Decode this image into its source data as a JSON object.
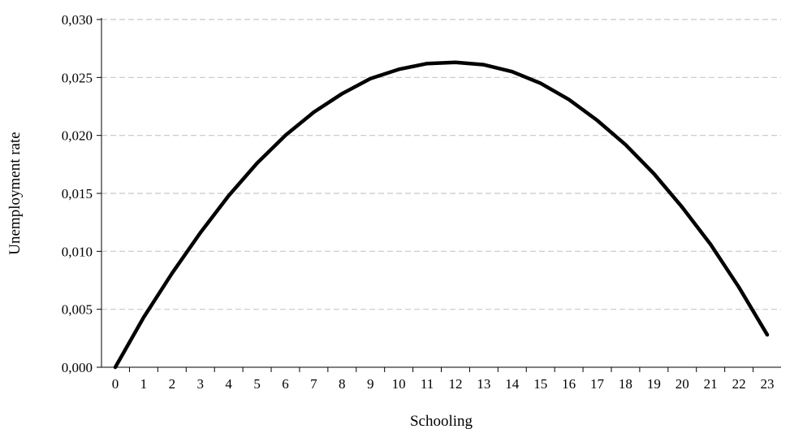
{
  "chart_data": {
    "type": "line",
    "title": "",
    "xlabel": "Schooling",
    "ylabel": "Unemployment rate",
    "xlim": [
      0,
      23
    ],
    "ylim": [
      0,
      0.03
    ],
    "x_ticks": [
      0,
      1,
      2,
      3,
      4,
      5,
      6,
      7,
      8,
      9,
      10,
      11,
      12,
      13,
      14,
      15,
      16,
      17,
      18,
      19,
      20,
      21,
      22,
      23
    ],
    "x_tick_labels": [
      "0",
      "1",
      "2",
      "3",
      "4",
      "5",
      "6",
      "7",
      "8",
      "9",
      "10",
      "11",
      "12",
      "13",
      "14",
      "15",
      "16",
      "17",
      "18",
      "19",
      "20",
      "21",
      "22",
      "23"
    ],
    "y_ticks": [
      0,
      0.005,
      0.01,
      0.015,
      0.02,
      0.025,
      0.03
    ],
    "y_tick_labels": [
      "0,000",
      "0,005",
      "0,010",
      "0,015",
      "0,020",
      "0,025",
      "0,030"
    ],
    "grid": "horizontal dashed",
    "legend": "none",
    "series": [
      {
        "color": "#000000",
        "x": [
          0,
          1,
          2,
          3,
          4,
          5,
          6,
          7,
          8,
          9,
          10,
          11,
          12,
          13,
          14,
          15,
          16,
          17,
          18,
          19,
          20,
          21,
          22,
          23
        ],
        "values": [
          0.0,
          0.0043,
          0.0081,
          0.0116,
          0.0148,
          0.0176,
          0.02,
          0.022,
          0.0236,
          0.0249,
          0.0257,
          0.0262,
          0.0263,
          0.0261,
          0.0255,
          0.0245,
          0.0231,
          0.0213,
          0.0192,
          0.0167,
          0.0138,
          0.0106,
          0.0069,
          0.0028
        ]
      }
    ]
  }
}
